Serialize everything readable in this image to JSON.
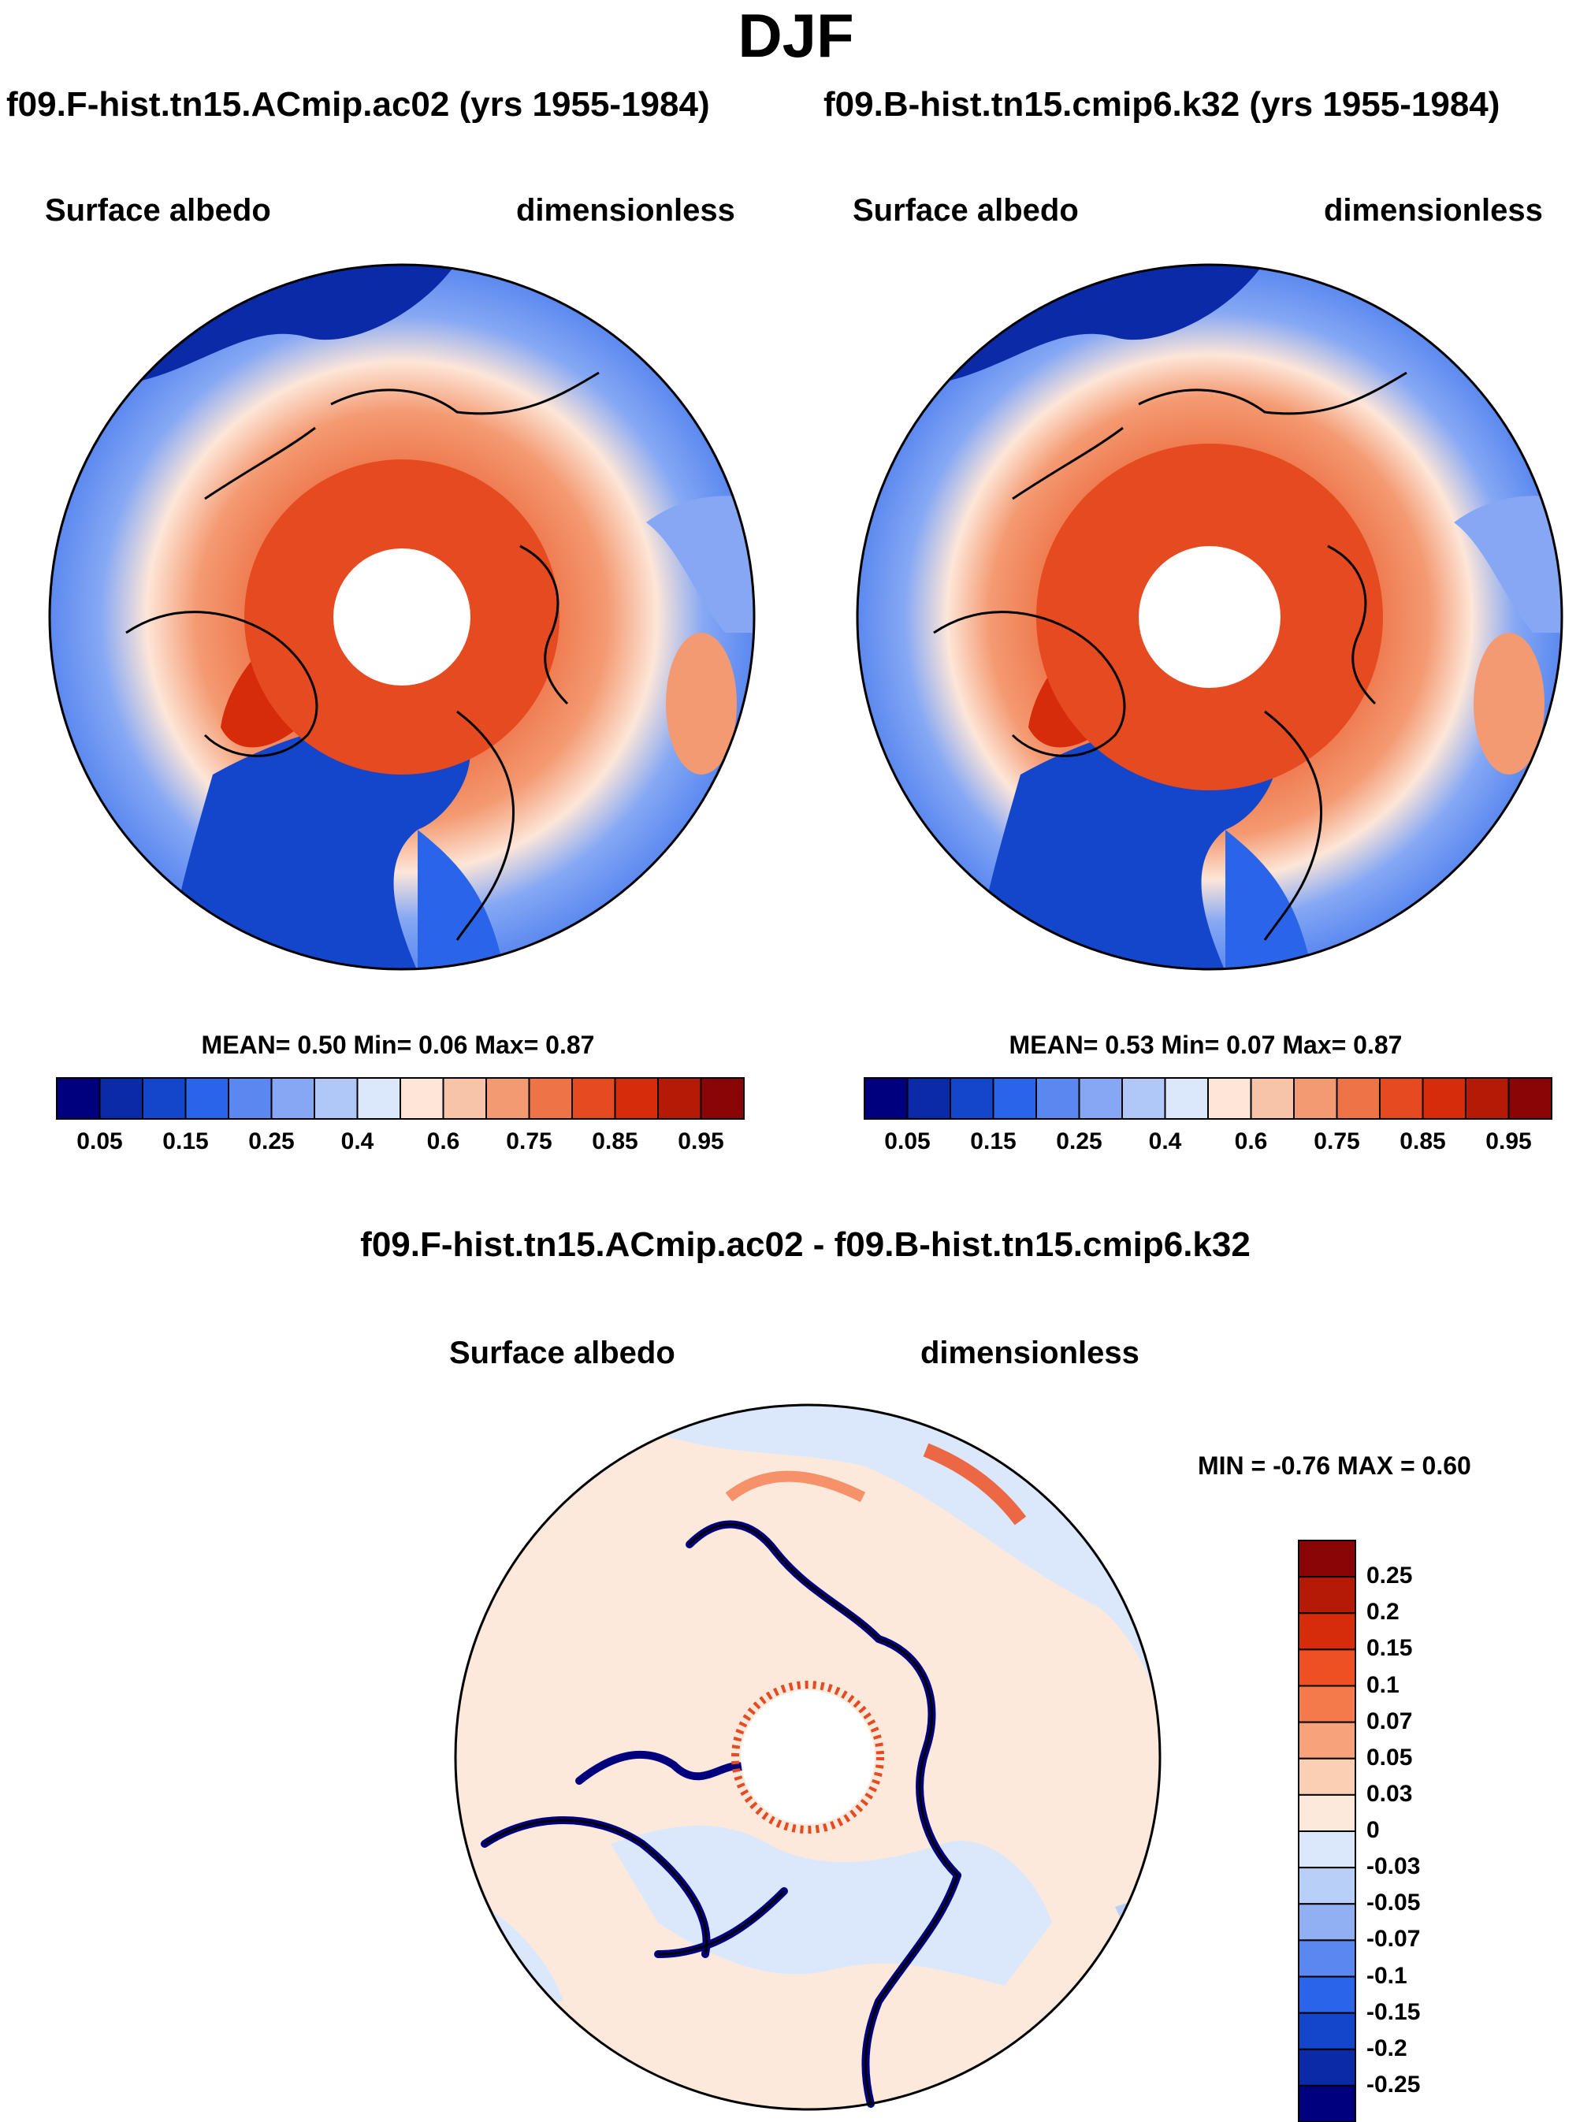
{
  "title": "DJF",
  "panels": [
    {
      "run": "f09.F-hist.tn15.ACmip.ac02 (yrs 1955-1984)",
      "variable": "Surface albedo",
      "units": "dimensionless",
      "stats": "MEAN=   0.50  Min=   0.06  Max=   0.87"
    },
    {
      "run": "f09.B-hist.tn15.cmip6.k32 (yrs 1955-1984)",
      "variable": "Surface albedo",
      "units": "dimensionless",
      "stats": "MEAN=   0.53  Min=   0.07  Max=   0.87"
    }
  ],
  "diff": {
    "title": "f09.F-hist.tn15.ACmip.ac02 - f09.B-hist.tn15.cmip6.k32",
    "variable": "Surface albedo",
    "units": "dimensionless",
    "stats": "MIN =  -0.76 MAX =   0.60"
  },
  "colorbar_main": {
    "ticks": [
      "0.05",
      "0.15",
      "0.25",
      "0.4",
      "0.6",
      "0.75",
      "0.85",
      "0.95"
    ],
    "colors": [
      "#00007f",
      "#0a2aa8",
      "#1446cc",
      "#2a64e8",
      "#5a88f0",
      "#86a8f4",
      "#b0c8f7",
      "#dbe8fb",
      "#fde6d8",
      "#f8c4a8",
      "#f49a72",
      "#ee7448",
      "#e64a20",
      "#d62c0c",
      "#b41a06",
      "#8a0505"
    ]
  },
  "colorbar_diff": {
    "ticks": [
      "0.25",
      "0.2",
      "0.15",
      "0.1",
      "0.07",
      "0.05",
      "0.03",
      "0",
      "-0.03",
      "-0.05",
      "-0.07",
      "-0.1",
      "-0.15",
      "-0.2",
      "-0.25"
    ],
    "colors": [
      "#8a0505",
      "#b41a06",
      "#d62c0c",
      "#ee5022",
      "#f47a4c",
      "#f7a27a",
      "#fbcfb4",
      "#fde9dc",
      "#dbe8fb",
      "#b8cff7",
      "#90b0f3",
      "#5a88f0",
      "#2a64e8",
      "#1446cc",
      "#0a2aa8",
      "#00007f"
    ]
  },
  "chart_data": [
    {
      "type": "heatmap",
      "title": "Surface albedo",
      "subtitle": "f09.F-hist.tn15.ACmip.ac02 (yrs 1955-1984)",
      "units": "dimensionless",
      "levels": [
        0.05,
        0.1,
        0.15,
        0.2,
        0.25,
        0.3,
        0.4,
        0.5,
        0.6,
        0.7,
        0.75,
        0.8,
        0.85,
        0.9,
        0.95
      ],
      "mean": 0.5,
      "min": 0.06,
      "max": 0.87
    },
    {
      "type": "heatmap",
      "title": "Surface albedo",
      "subtitle": "f09.B-hist.tn15.cmip6.k32 (yrs 1955-1984)",
      "units": "dimensionless",
      "levels": [
        0.05,
        0.1,
        0.15,
        0.2,
        0.25,
        0.3,
        0.4,
        0.5,
        0.6,
        0.7,
        0.75,
        0.8,
        0.85,
        0.9,
        0.95
      ],
      "mean": 0.53,
      "min": 0.07,
      "max": 0.87
    },
    {
      "type": "heatmap",
      "title": "Surface albedo",
      "subtitle": "f09.F-hist.tn15.ACmip.ac02 - f09.B-hist.tn15.cmip6.k32",
      "units": "dimensionless",
      "levels": [
        -0.25,
        -0.2,
        -0.15,
        -0.1,
        -0.07,
        -0.05,
        -0.03,
        0,
        0.03,
        0.05,
        0.07,
        0.1,
        0.15,
        0.2,
        0.25
      ],
      "min": -0.76,
      "max": 0.6
    }
  ]
}
